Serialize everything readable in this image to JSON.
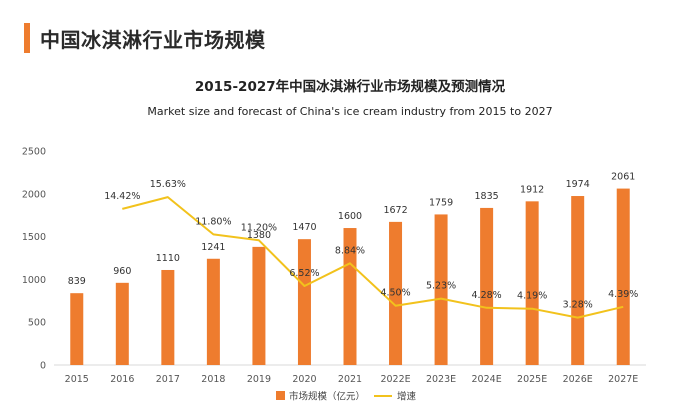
{
  "header": {
    "title": "中国冰淇淋行业市场规模"
  },
  "chart_data": {
    "type": "bar",
    "title": "2015-2027年中国冰淇淋行业市场规模及预测情况",
    "subtitle": "Market size and forecast of China's ice cream industry from 2015 to 2027",
    "xlabel": "",
    "ylabel": "",
    "ylim": [
      0,
      2500
    ],
    "yticks": [
      0,
      500,
      1000,
      1500,
      2000,
      2500
    ],
    "categories": [
      "2015",
      "2016",
      "2017",
      "2018",
      "2019",
      "2020",
      "2021",
      "2022E",
      "2023E",
      "2024E",
      "2025E",
      "2026E",
      "2027E"
    ],
    "series": [
      {
        "name": "市场规模（亿元）",
        "type": "bar",
        "color": "#ee7c2e",
        "values": [
          839,
          960,
          1110,
          1241,
          1380,
          1470,
          1600,
          1672,
          1759,
          1835,
          1912,
          1974,
          2061
        ]
      },
      {
        "name": "增速",
        "type": "line",
        "color": "#f2c21c",
        "values": [
          null,
          14.42,
          15.63,
          11.8,
          11.2,
          6.52,
          8.84,
          4.5,
          5.23,
          4.28,
          4.19,
          3.28,
          4.39
        ],
        "labels": [
          "",
          "14.42%",
          "15.63%",
          "11.80%",
          "11.20%",
          "6.52%",
          "8.84%",
          "4.50%",
          "5.23%",
          "4.28%",
          "4.19%",
          "3.28%",
          "4.39%"
        ],
        "plot_scale": {
          "pct_zero_value": 180,
          "value_per_pct": 114
        }
      }
    ],
    "grid": false,
    "legend": "bottom-center"
  }
}
